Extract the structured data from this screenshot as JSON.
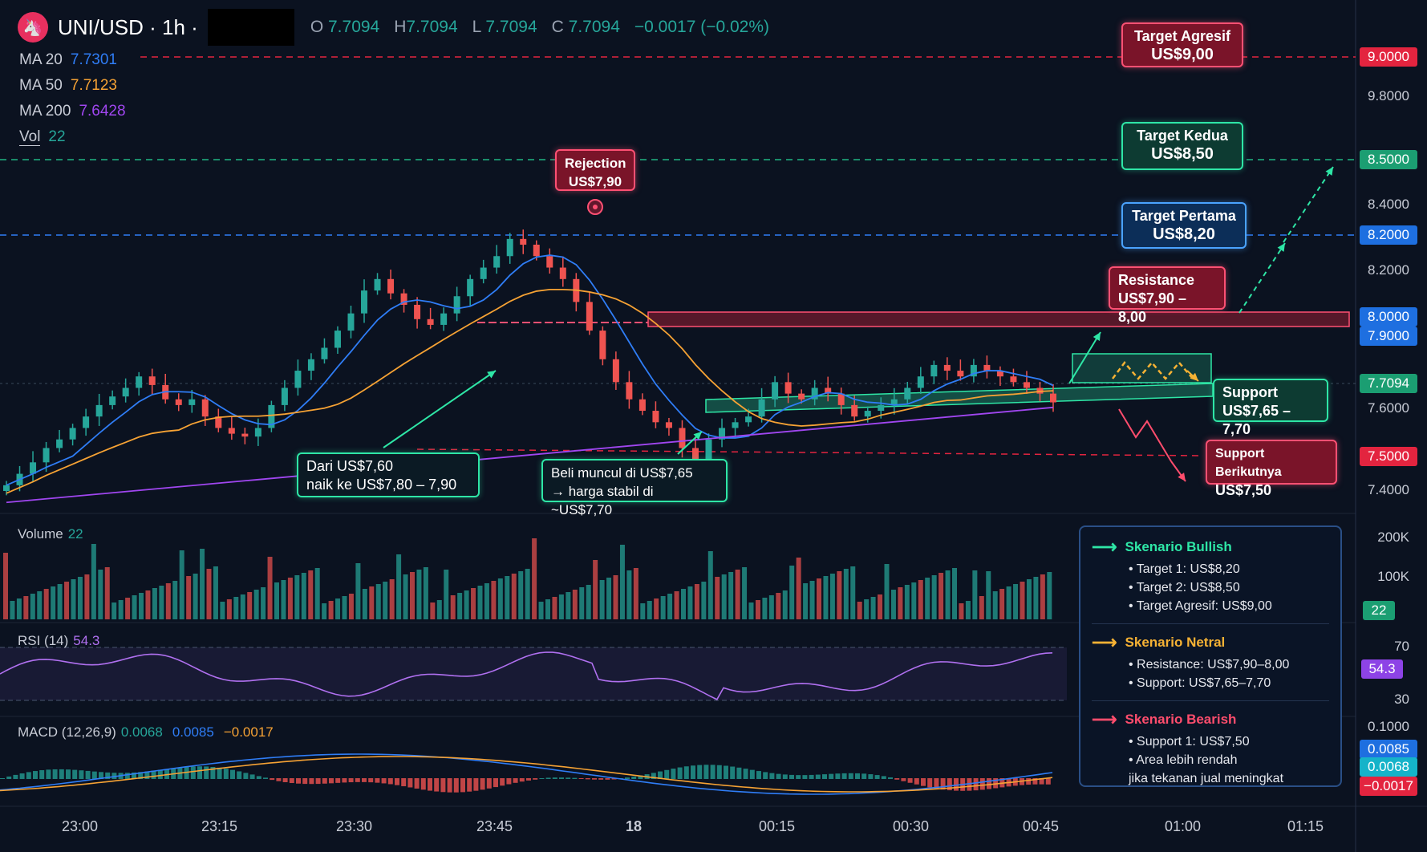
{
  "header": {
    "symbol": "UNI/USD · 1h ·",
    "o_label": "O",
    "o": "7.7094",
    "h_label": "H",
    "h": "7.7094",
    "l_label": "L",
    "l": "7.7094",
    "c_label": "C",
    "c": "7.7094",
    "change": "−0.0017 (−0.02%)"
  },
  "ma": [
    {
      "label": "MA 20",
      "value": "7.7301",
      "color": "#2f7df6"
    },
    {
      "label": "MA 50",
      "value": "7.7123",
      "color": "#f6a234"
    },
    {
      "label": "MA 200",
      "value": "7.6428",
      "color": "#a046f0"
    },
    {
      "label": "Vol",
      "value": "22",
      "color": "#26a69a"
    }
  ],
  "panels": {
    "volume": {
      "label": "Volume",
      "value": "22"
    },
    "rsi": {
      "label": "RSI (14)",
      "value": "54.3"
    },
    "macd": {
      "label": "MACD (12,26,9)",
      "v1": "0.0068",
      "v2": "0.0085",
      "v3": "−0.0017"
    }
  },
  "price_axis": {
    "ticks": [
      "9.8000",
      "8.4000",
      "8.2000",
      "7.6000",
      "7.4000"
    ],
    "tags": [
      {
        "text": "9.0000",
        "color": "#e3243f"
      },
      {
        "text": "8.5000",
        "color": "#1b9e72"
      },
      {
        "text": "8.2000",
        "color": "#1e6fe0"
      },
      {
        "text": "8.0000",
        "color": "#1e6fe0"
      },
      {
        "text": "7.9000",
        "color": "#1e6fe0"
      },
      {
        "text": "7.7094",
        "color": "#1b9e72"
      },
      {
        "text": "7.5000",
        "color": "#e3243f"
      }
    ]
  },
  "volume_axis": {
    "ticks": [
      "200K",
      "100K"
    ],
    "tag": "22"
  },
  "rsi_axis": {
    "ticks": [
      "70",
      "30"
    ],
    "tag": "54.3"
  },
  "macd_axis": {
    "tick": "0.1000",
    "tags": [
      "0.0085",
      "0.0068",
      "−0.0017"
    ]
  },
  "time_axis": [
    "23:00",
    "23:15",
    "23:30",
    "23:45",
    "18",
    "00:15",
    "00:30",
    "00:45",
    "01:00",
    "01:15"
  ],
  "annotations": {
    "target_agresif": {
      "title": "Target Agresif",
      "value": "US$9,00"
    },
    "target_kedua": {
      "title": "Target Kedua",
      "value": "US$8,50"
    },
    "target_pertama": {
      "title": "Target Pertama",
      "value": "US$8,20"
    },
    "resistance": {
      "title": "Resistance",
      "value": "US$7,90 – 8,00"
    },
    "support": {
      "title": "Support",
      "value": "US$7,65 – 7,70"
    },
    "support_next": {
      "title": "Support Berikutnya",
      "value": "US$7,50"
    },
    "rejection": {
      "title": "Rejection",
      "value": "US$7,90"
    },
    "dari": {
      "line1": "Dari US$7,60",
      "line2": "naik ke US$7,80 – 7,90"
    },
    "beli": {
      "line1": "Beli muncul di US$7,65",
      "line2": "→ harga stabil di ~US$7,70"
    }
  },
  "scenarios": [
    {
      "title": "Skenario Bullish",
      "color": "#2ee6a6",
      "items": [
        "• Target 1: US$8,20",
        "• Target 2: US$8,50",
        "• Target Agresif: US$9,00"
      ]
    },
    {
      "title": "Skenario Netral",
      "color": "#f6b234",
      "items": [
        "• Resistance: US$7,90–8,00",
        "• Support: US$7,65–7,70"
      ]
    },
    {
      "title": "Skenario Bearish",
      "color": "#ff4d6d",
      "items": [
        "• Support 1: US$7,50",
        "• Area lebih rendah",
        "jika tekanan jual meningkat"
      ]
    }
  ],
  "chart_data": {
    "type": "candlestick",
    "ohlc_close_path": [
      7.42,
      7.46,
      7.5,
      7.55,
      7.58,
      7.62,
      7.66,
      7.7,
      7.73,
      7.76,
      7.8,
      7.77,
      7.72,
      7.7,
      7.72,
      7.66,
      7.62,
      7.6,
      7.59,
      7.62,
      7.7,
      7.76,
      7.82,
      7.86,
      7.9,
      7.96,
      8.02,
      8.1,
      8.14,
      8.09,
      8.05,
      8.0,
      7.98,
      8.02,
      8.08,
      8.14,
      8.18,
      8.22,
      8.28,
      8.26,
      8.22,
      8.18,
      8.14,
      8.06,
      7.96,
      7.86,
      7.78,
      7.72,
      7.68,
      7.64,
      7.62,
      7.55,
      7.5,
      7.58,
      7.62,
      7.64,
      7.66,
      7.72,
      7.78,
      7.74,
      7.72,
      7.76,
      7.74,
      7.7,
      7.66,
      7.68,
      7.7,
      7.72,
      7.76,
      7.8,
      7.84,
      7.82,
      7.8,
      7.84,
      7.82,
      7.8,
      7.78,
      7.76,
      7.74,
      7.7094
    ],
    "levels": {
      "resistance": [
        7.9,
        8.0
      ],
      "support": [
        7.65,
        7.7
      ],
      "support_next": 7.5,
      "target_1": 8.2,
      "target_2": 8.5,
      "target_aggressive": 9.0,
      "rejection": 7.9
    },
    "rsi_range": [
      30,
      70
    ],
    "rsi_last": 54.3,
    "macd_last": {
      "macd": 0.0068,
      "signal": 0.0085,
      "hist": -0.0017
    }
  }
}
